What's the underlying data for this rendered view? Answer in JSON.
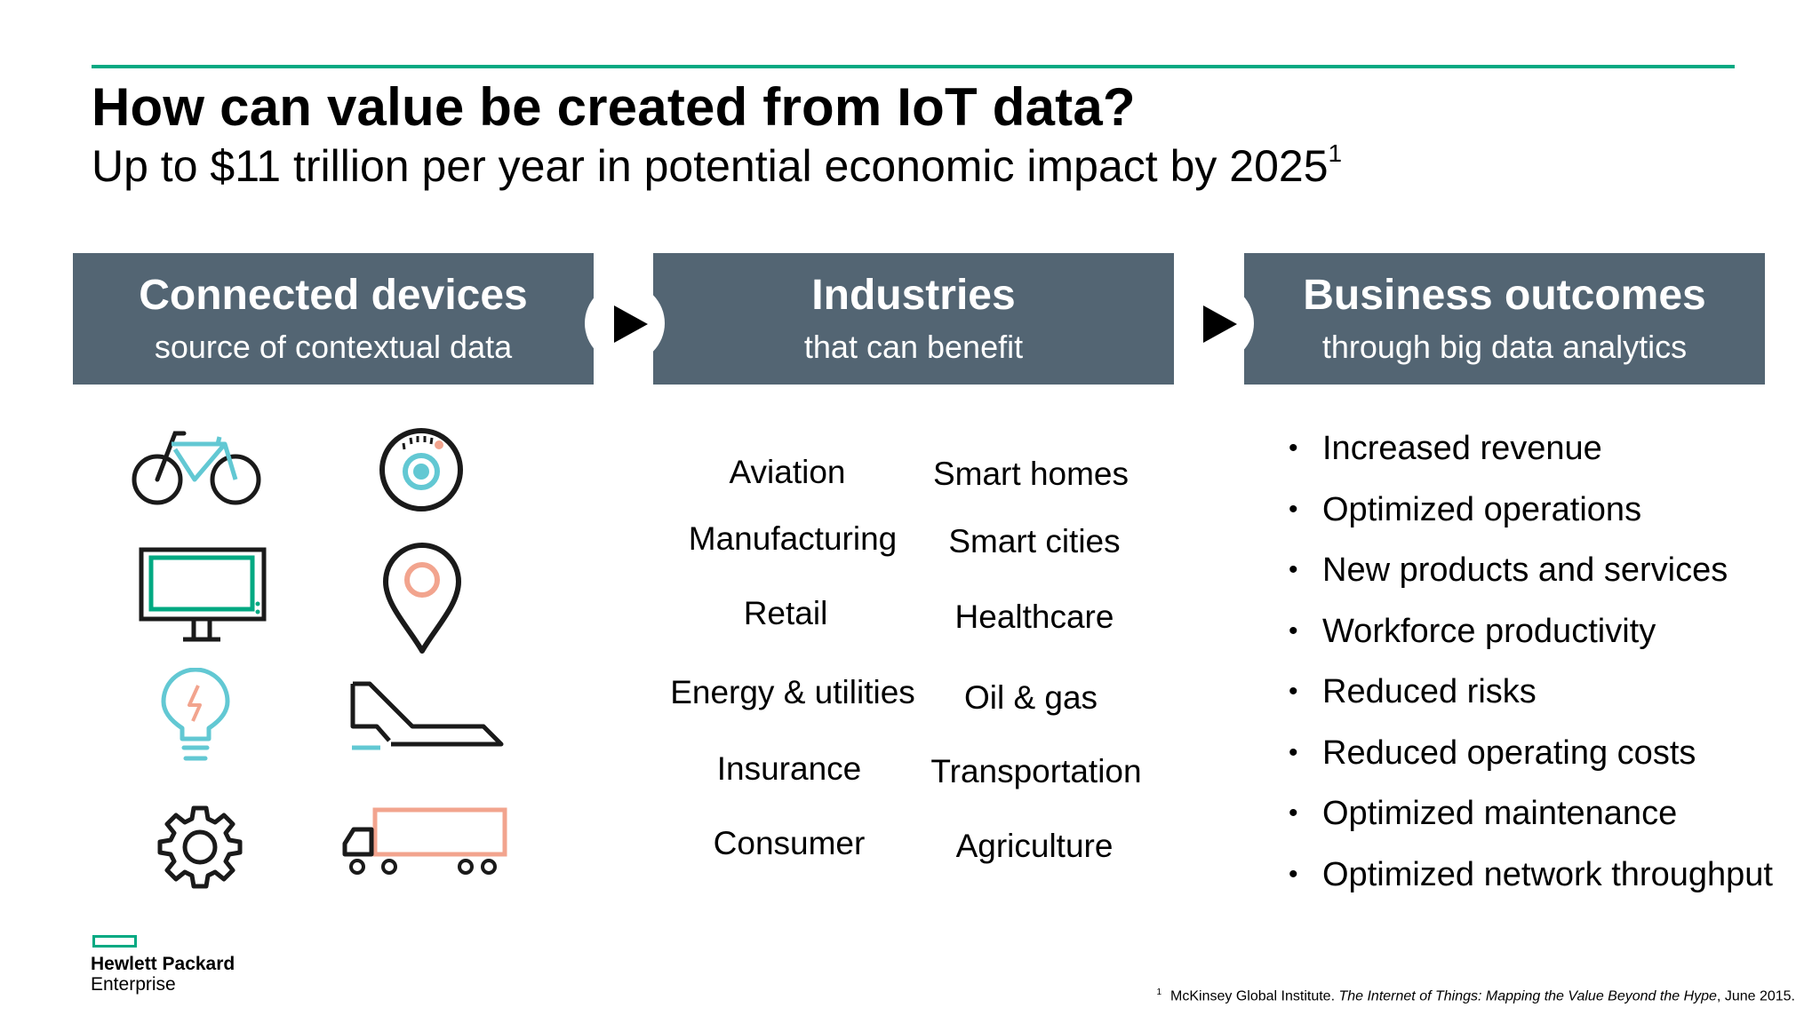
{
  "title": "How can value be created from IoT data?",
  "subtitle": {
    "text": "Up to $11 trillion per year in potential economic impact by 2025",
    "footnote_mark": "1"
  },
  "columns": [
    {
      "heading": "Connected devices",
      "sub": "source of contextual data"
    },
    {
      "heading": "Industries",
      "sub": "that can benefit"
    },
    {
      "heading": "Business outcomes",
      "sub": "through big data analytics"
    }
  ],
  "devices": [
    "bicycle-icon",
    "fitness-tracker-icon",
    "monitor-icon",
    "location-pin-icon",
    "lightbulb-icon",
    "airplane-icon",
    "gear-icon",
    "truck-icon"
  ],
  "industries": {
    "left": [
      "Aviation",
      "Manufacturing",
      "Retail",
      "Energy & utilities",
      "Insurance",
      "Consumer"
    ],
    "right": [
      "Smart homes",
      "Smart cities",
      "Healthcare",
      "Oil & gas",
      "Transportation",
      "Agriculture"
    ]
  },
  "outcomes": [
    "Increased revenue",
    "Optimized operations",
    "New products and services",
    "Workforce productivity",
    "Reduced risks",
    "Reduced operating costs",
    "Optimized maintenance",
    "Optimized network throughput"
  ],
  "logo": {
    "line1": "Hewlett Packard",
    "line2": "Enterprise"
  },
  "footnote": {
    "mark": "1",
    "pre": "McKinsey Global Institute. ",
    "title": "The Internet of Things: Mapping the Value Beyond the Hype",
    "post": ", June 2015."
  },
  "colors": {
    "accent": "#01a982",
    "box": "#536573",
    "teal": "#62c8d3",
    "coral": "#f2a48e"
  }
}
